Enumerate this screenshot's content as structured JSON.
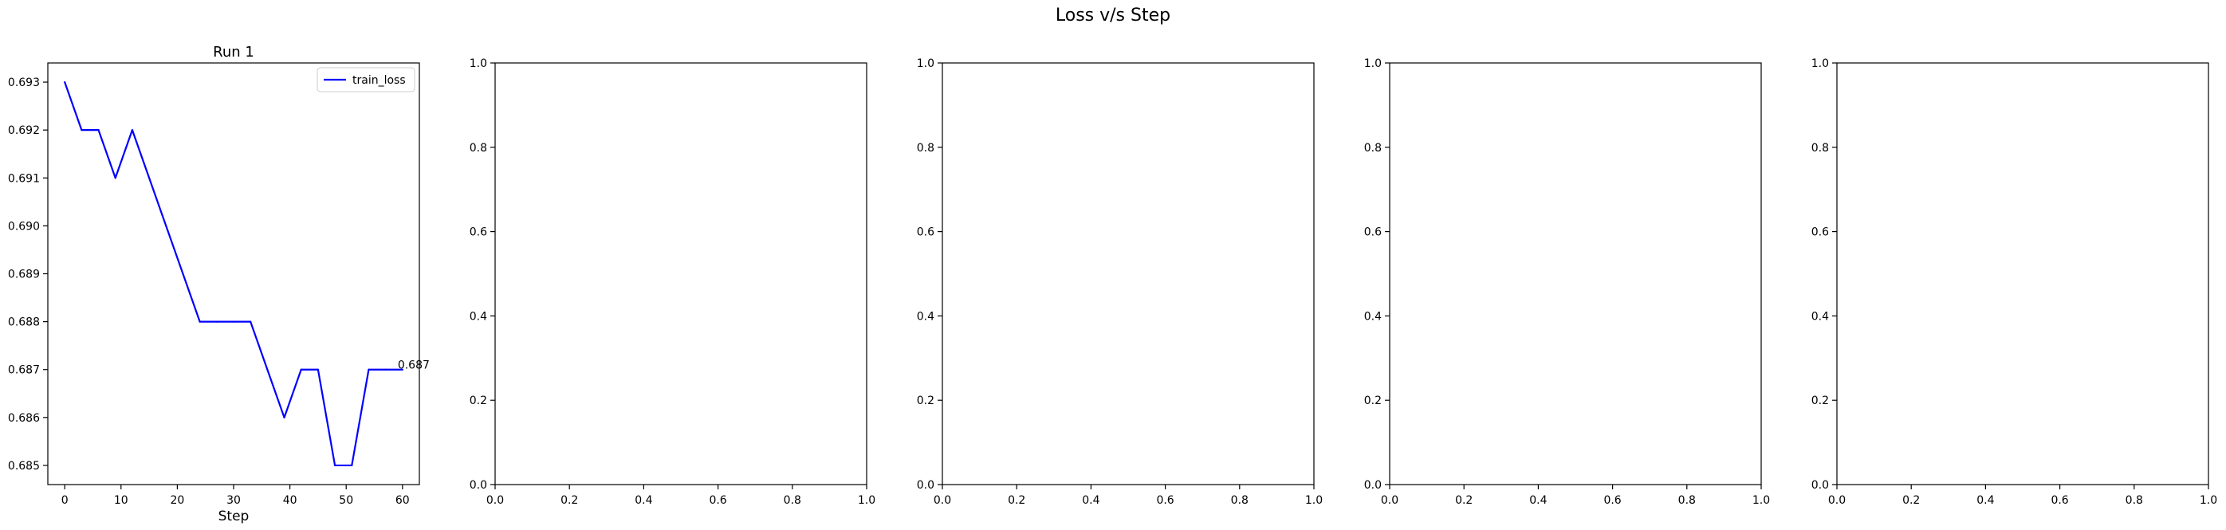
{
  "figure": {
    "suptitle": "Loss v/s Step"
  },
  "chart_data": [
    {
      "type": "line",
      "title": "Run 1",
      "xlabel": "Step",
      "ylabel": "",
      "xlim": [
        -3,
        63
      ],
      "ylim": [
        0.6846,
        0.6934
      ],
      "xticks": [
        0,
        10,
        20,
        30,
        40,
        50,
        60
      ],
      "yticks": [
        0.685,
        0.686,
        0.687,
        0.688,
        0.689,
        0.69,
        0.691,
        0.692,
        0.693
      ],
      "ytick_labels": [
        "0.685",
        "0.686",
        "0.687",
        "0.688",
        "0.689",
        "0.690",
        "0.691",
        "0.692",
        "0.693"
      ],
      "grid": false,
      "legend_position": "top-right",
      "series": [
        {
          "name": "train_loss",
          "color": "#0000ff",
          "x": [
            0,
            3,
            6,
            9,
            12,
            15,
            18,
            21,
            24,
            27,
            30,
            33,
            36,
            39,
            42,
            45,
            48,
            51,
            54,
            57,
            60
          ],
          "y": [
            0.693,
            0.692,
            0.692,
            0.691,
            0.692,
            0.691,
            0.69,
            0.689,
            0.688,
            0.688,
            0.688,
            0.688,
            0.687,
            0.686,
            0.687,
            0.687,
            0.685,
            0.685,
            0.687,
            0.687,
            0.687
          ]
        }
      ],
      "annotations": [
        {
          "text": "0.687",
          "x": 60,
          "y": 0.687
        }
      ]
    },
    {
      "type": "line",
      "title": "",
      "xlabel": "",
      "ylabel": "",
      "xlim": [
        0,
        1
      ],
      "ylim": [
        0,
        1
      ],
      "xticks": [
        0,
        0.2,
        0.4,
        0.6,
        0.8,
        1.0
      ],
      "xtick_labels": [
        "0.0",
        "0.2",
        "0.4",
        "0.6",
        "0.8",
        "1.0"
      ],
      "yticks": [
        0,
        0.2,
        0.4,
        0.6,
        0.8,
        1.0
      ],
      "ytick_labels": [
        "0.0",
        "0.2",
        "0.4",
        "0.6",
        "0.8",
        "1.0"
      ],
      "grid": false,
      "series": []
    },
    {
      "type": "line",
      "title": "",
      "xlabel": "",
      "ylabel": "",
      "xlim": [
        0,
        1
      ],
      "ylim": [
        0,
        1
      ],
      "xticks": [
        0,
        0.2,
        0.4,
        0.6,
        0.8,
        1.0
      ],
      "xtick_labels": [
        "0.0",
        "0.2",
        "0.4",
        "0.6",
        "0.8",
        "1.0"
      ],
      "yticks": [
        0,
        0.2,
        0.4,
        0.6,
        0.8,
        1.0
      ],
      "ytick_labels": [
        "0.0",
        "0.2",
        "0.4",
        "0.6",
        "0.8",
        "1.0"
      ],
      "grid": false,
      "series": []
    },
    {
      "type": "line",
      "title": "",
      "xlabel": "",
      "ylabel": "",
      "xlim": [
        0,
        1
      ],
      "ylim": [
        0,
        1
      ],
      "xticks": [
        0,
        0.2,
        0.4,
        0.6,
        0.8,
        1.0
      ],
      "xtick_labels": [
        "0.0",
        "0.2",
        "0.4",
        "0.6",
        "0.8",
        "1.0"
      ],
      "yticks": [
        0,
        0.2,
        0.4,
        0.6,
        0.8,
        1.0
      ],
      "ytick_labels": [
        "0.0",
        "0.2",
        "0.4",
        "0.6",
        "0.8",
        "1.0"
      ],
      "grid": false,
      "series": []
    },
    {
      "type": "line",
      "title": "",
      "xlabel": "",
      "ylabel": "",
      "xlim": [
        0,
        1
      ],
      "ylim": [
        0,
        1
      ],
      "xticks": [
        0,
        0.2,
        0.4,
        0.6,
        0.8,
        1.0
      ],
      "xtick_labels": [
        "0.0",
        "0.2",
        "0.4",
        "0.6",
        "0.8",
        "1.0"
      ],
      "yticks": [
        0,
        0.2,
        0.4,
        0.6,
        0.8,
        1.0
      ],
      "ytick_labels": [
        "0.0",
        "0.2",
        "0.4",
        "0.6",
        "0.8",
        "1.0"
      ],
      "grid": false,
      "series": []
    }
  ]
}
